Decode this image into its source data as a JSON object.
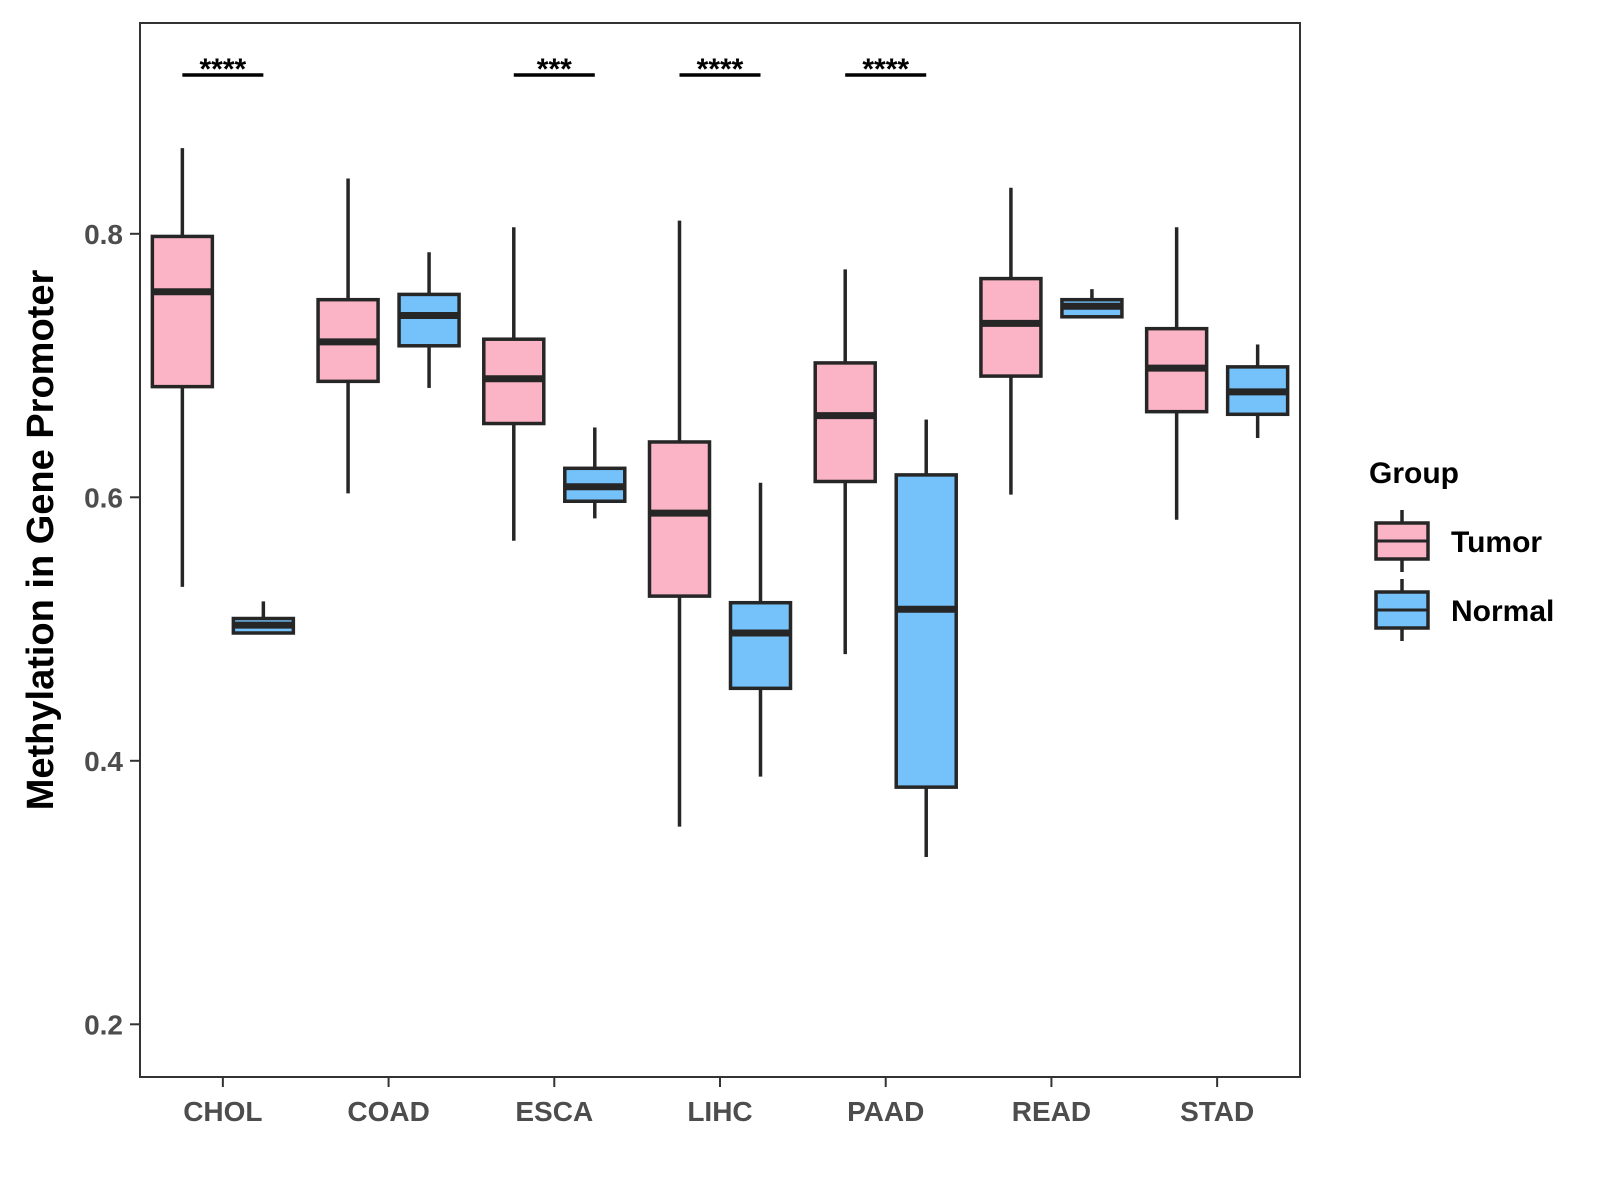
{
  "chart_data": {
    "type": "boxplot",
    "title": "",
    "xlabel": "",
    "ylabel": "Methylation in Gene Promoter",
    "ylim": [
      0.16,
      0.96
    ],
    "yticks": [
      0.2,
      0.4,
      0.6,
      0.8
    ],
    "ytick_labels": [
      "0.2",
      "0.4",
      "0.6",
      "0.8"
    ],
    "categories": [
      "CHOL",
      "COAD",
      "ESCA",
      "LIHC",
      "PAAD",
      "READ",
      "STAD"
    ],
    "legend": {
      "title": "Group",
      "position": "right"
    },
    "series": [
      {
        "name": "Tumor",
        "color": "#FBB4C6",
        "boxes": [
          {
            "min": 0.532,
            "q1": 0.684,
            "median": 0.756,
            "q3": 0.798,
            "max": 0.865
          },
          {
            "min": 0.603,
            "q1": 0.688,
            "median": 0.718,
            "q3": 0.75,
            "max": 0.842
          },
          {
            "min": 0.567,
            "q1": 0.656,
            "median": 0.69,
            "q3": 0.72,
            "max": 0.805
          },
          {
            "min": 0.35,
            "q1": 0.525,
            "median": 0.588,
            "q3": 0.642,
            "max": 0.81
          },
          {
            "min": 0.481,
            "q1": 0.612,
            "median": 0.662,
            "q3": 0.702,
            "max": 0.773
          },
          {
            "min": 0.602,
            "q1": 0.692,
            "median": 0.732,
            "q3": 0.766,
            "max": 0.835
          },
          {
            "min": 0.583,
            "q1": 0.665,
            "median": 0.698,
            "q3": 0.728,
            "max": 0.805
          }
        ]
      },
      {
        "name": "Normal",
        "color": "#75C1FA",
        "boxes": [
          {
            "min": 0.497,
            "q1": 0.497,
            "median": 0.503,
            "q3": 0.508,
            "max": 0.521
          },
          {
            "min": 0.683,
            "q1": 0.715,
            "median": 0.738,
            "q3": 0.754,
            "max": 0.786
          },
          {
            "min": 0.584,
            "q1": 0.597,
            "median": 0.608,
            "q3": 0.622,
            "max": 0.653
          },
          {
            "min": 0.388,
            "q1": 0.455,
            "median": 0.497,
            "q3": 0.52,
            "max": 0.611
          },
          {
            "min": 0.327,
            "q1": 0.38,
            "median": 0.515,
            "q3": 0.617,
            "max": 0.659
          },
          {
            "min": 0.736,
            "q1": 0.737,
            "median": 0.745,
            "q3": 0.75,
            "max": 0.758
          },
          {
            "min": 0.645,
            "q1": 0.663,
            "median": 0.68,
            "q3": 0.699,
            "max": 0.716
          }
        ]
      }
    ],
    "significance": [
      {
        "category": "CHOL",
        "label": "****"
      },
      {
        "category": "ESCA",
        "label": "***"
      },
      {
        "category": "LIHC",
        "label": "****"
      },
      {
        "category": "PAAD",
        "label": "****"
      }
    ]
  }
}
